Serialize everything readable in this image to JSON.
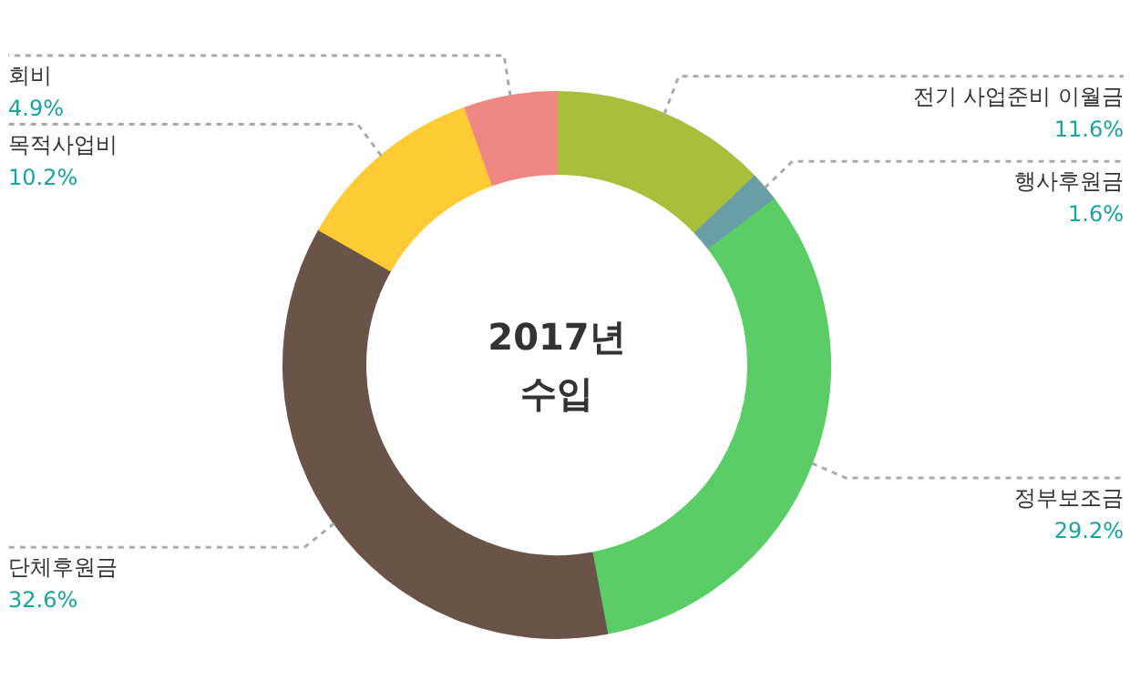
{
  "chart_data": {
    "type": "donut",
    "title": "2017년\n수입",
    "categories": [
      "전기 사업준비 이월금",
      "행사후원금",
      "정부보조금",
      "단체후원금",
      "목적사업비",
      "회비"
    ],
    "values": [
      11.6,
      1.6,
      29.2,
      32.6,
      10.2,
      4.9
    ],
    "colors": [
      "#a9bf3c",
      "#6a9ea6",
      "#5bcd67",
      "#6a5449",
      "#fecb34",
      "#ef8884"
    ],
    "value_labels": [
      "11.6%",
      "1.6%",
      "29.2%",
      "32.6%",
      "10.2%",
      "4.9%"
    ]
  }
}
